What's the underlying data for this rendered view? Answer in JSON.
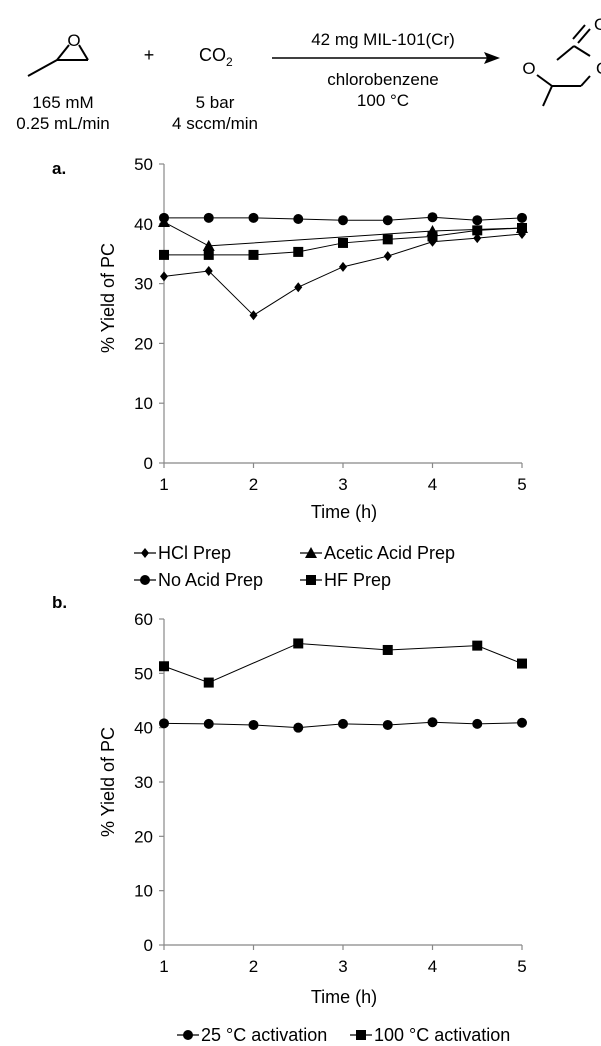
{
  "scheme": {
    "plus": "+",
    "reactant1": {
      "line1": "165 mM",
      "line2": "0.25 mL/min"
    },
    "reactant2": {
      "formula": "CO",
      "subscript": "2",
      "line1": "5 bar",
      "line2": "4 sccm/min"
    },
    "arrow": {
      "above": "42 mg MIL-101(Cr)",
      "below1": "chlorobenzene",
      "below2": "100 °C"
    },
    "epoxide_o": "O",
    "carbonate_o1": "O",
    "carbonate_o2": "O",
    "carbonate_o3": "O"
  },
  "chart_data": [
    {
      "type": "line",
      "panel_label": "a.",
      "title": "",
      "xlabel": "Time (h)",
      "ylabel": "% Yield of PC",
      "xlim": [
        1,
        5
      ],
      "ylim": [
        0,
        50
      ],
      "xticks": [
        1,
        2,
        3,
        4,
        5
      ],
      "yticks": [
        0,
        10,
        20,
        30,
        40,
        50
      ],
      "grid": false,
      "legend_position": "bottom",
      "series": [
        {
          "name": "HCl Prep",
          "marker": "diamond",
          "x": [
            1,
            1.5,
            2,
            2.5,
            3,
            3.5,
            4,
            4.5,
            5
          ],
          "values": [
            31.2,
            32.1,
            24.7,
            29.4,
            32.8,
            34.6,
            37.0,
            37.6,
            38.3
          ]
        },
        {
          "name": "Acetic Acid Prep",
          "marker": "triangle",
          "x": [
            1,
            1.5,
            4,
            5
          ],
          "values": [
            40.3,
            36.3,
            38.8,
            39.3
          ]
        },
        {
          "name": "No Acid Prep",
          "marker": "circle",
          "x": [
            1,
            1.5,
            2,
            2.5,
            3,
            3.5,
            4,
            4.5,
            5
          ],
          "values": [
            41.0,
            41.0,
            41.0,
            40.8,
            40.6,
            40.6,
            41.1,
            40.6,
            41.0
          ]
        },
        {
          "name": "HF Prep",
          "marker": "square",
          "x": [
            1,
            1.5,
            2,
            2.5,
            3,
            3.5,
            4,
            4.5,
            5
          ],
          "values": [
            34.8,
            34.8,
            34.8,
            35.3,
            36.8,
            37.4,
            37.9,
            38.9,
            39.3
          ]
        }
      ]
    },
    {
      "type": "line",
      "panel_label": "b.",
      "title": "",
      "xlabel": "Time (h)",
      "ylabel": "% Yield of PC",
      "xlim": [
        1,
        5
      ],
      "ylim": [
        0,
        60
      ],
      "xticks": [
        1,
        2,
        3,
        4,
        5
      ],
      "yticks": [
        0,
        10,
        20,
        30,
        40,
        50,
        60
      ],
      "grid": false,
      "legend_position": "bottom",
      "series": [
        {
          "name": "25 °C activation",
          "marker": "circle",
          "x": [
            1,
            1.5,
            2,
            2.5,
            3,
            3.5,
            4,
            4.5,
            5
          ],
          "values": [
            40.8,
            40.7,
            40.5,
            40.0,
            40.7,
            40.5,
            41.0,
            40.7,
            40.9
          ]
        },
        {
          "name": "100 °C activation",
          "marker": "square",
          "x": [
            1,
            1.5,
            2.5,
            3.5,
            4.5,
            5
          ],
          "values": [
            51.3,
            48.3,
            55.5,
            54.3,
            55.1,
            51.8
          ]
        }
      ]
    }
  ]
}
